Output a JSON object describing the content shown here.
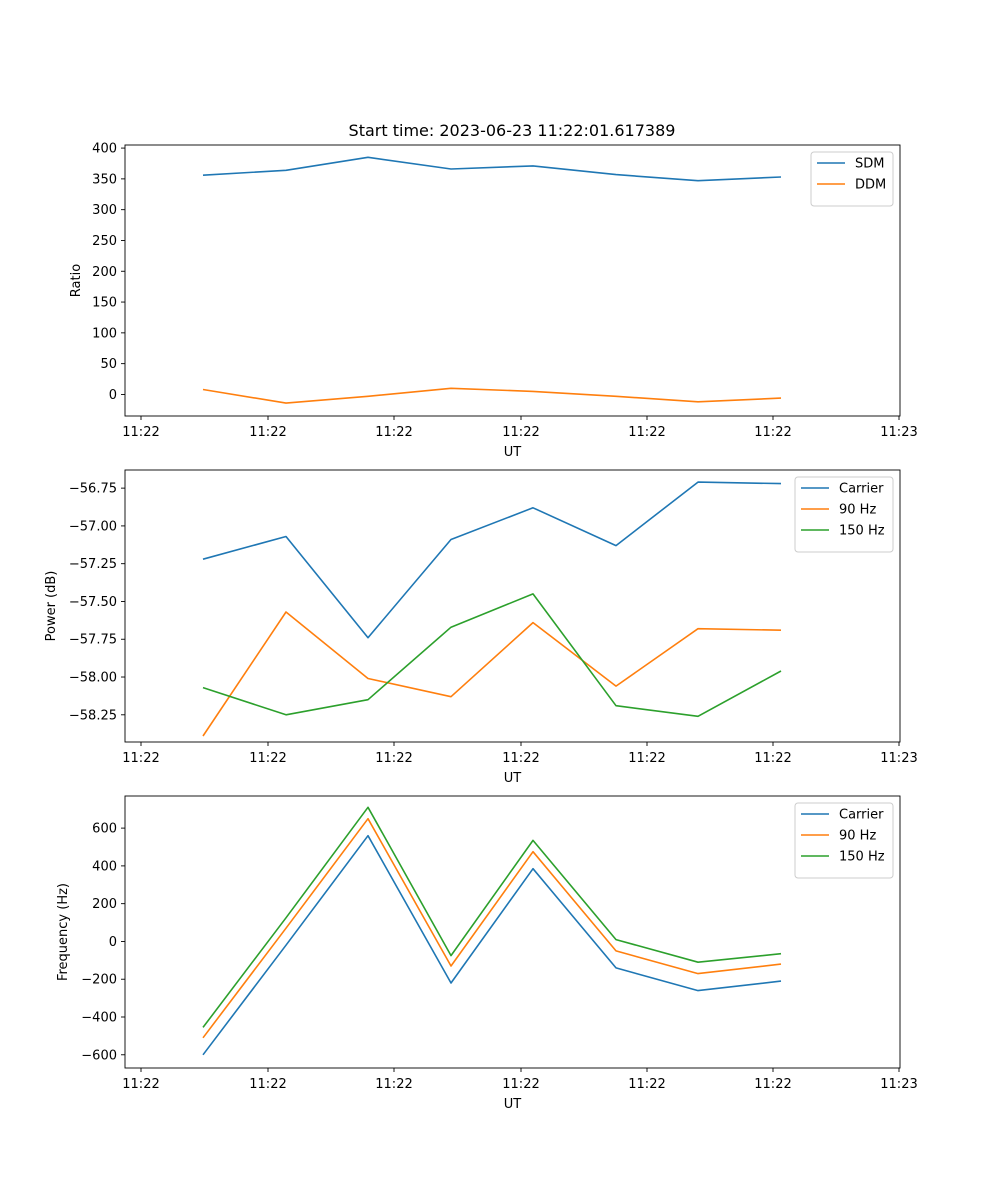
{
  "title": "Start time: 2023-06-23 11:22:01.617389",
  "colors": {
    "c0": "#1f77b4",
    "c1": "#ff7f0e",
    "c2": "#2ca02c"
  },
  "chart_data": [
    {
      "type": "line",
      "xlabel": "UT",
      "ylabel": "Ratio",
      "x_tick_labels": [
        "11:22",
        "11:22",
        "11:22",
        "11:22",
        "11:22",
        "11:22",
        "11:23"
      ],
      "y_ticks": [
        0,
        50,
        100,
        150,
        200,
        250,
        300,
        350,
        400
      ],
      "y_tick_labels": [
        "0",
        "50",
        "100",
        "150",
        "200",
        "250",
        "300",
        "350",
        "400"
      ],
      "ylim": [
        -35,
        405
      ],
      "legend_position": "upper right",
      "series": [
        {
          "name": "SDM",
          "values": [
            356,
            364,
            385,
            366,
            371,
            357,
            347,
            353
          ]
        },
        {
          "name": "DDM",
          "values": [
            8,
            -14,
            -3,
            10,
            5,
            -3,
            -12,
            -6
          ]
        }
      ]
    },
    {
      "type": "line",
      "xlabel": "UT",
      "ylabel": "Power (dB)",
      "x_tick_labels": [
        "11:22",
        "11:22",
        "11:22",
        "11:22",
        "11:22",
        "11:22",
        "11:23"
      ],
      "y_ticks": [
        -58.25,
        -58.0,
        -57.75,
        -57.5,
        -57.25,
        -57.0,
        -56.75
      ],
      "y_tick_labels": [
        "−58.25",
        "−58.00",
        "−57.75",
        "−57.50",
        "−57.25",
        "−57.00",
        "−56.75"
      ],
      "ylim": [
        -58.43,
        -56.63
      ],
      "legend_position": "upper right",
      "series": [
        {
          "name": "Carrier",
          "values": [
            -57.22,
            -57.07,
            -57.74,
            -57.09,
            -56.88,
            -57.13,
            -56.71,
            -56.72
          ]
        },
        {
          "name": "90 Hz",
          "values": [
            -58.39,
            -57.57,
            -58.01,
            -58.13,
            -57.64,
            -58.06,
            -57.68,
            -57.69
          ]
        },
        {
          "name": "150 Hz",
          "values": [
            -58.07,
            -58.25,
            -58.15,
            -57.67,
            -57.45,
            -58.19,
            -58.26,
            -57.96
          ]
        }
      ]
    },
    {
      "type": "line",
      "xlabel": "UT",
      "ylabel": "Frequency (Hz)",
      "x_tick_labels": [
        "11:22",
        "11:22",
        "11:22",
        "11:22",
        "11:22",
        "11:22",
        "11:23"
      ],
      "y_ticks": [
        -600,
        -400,
        -200,
        0,
        200,
        400,
        600
      ],
      "y_tick_labels": [
        "−600",
        "−400",
        "−200",
        "0",
        "200",
        "400",
        "600"
      ],
      "ylim": [
        -670,
        770
      ],
      "legend_position": "upper right",
      "series": [
        {
          "name": "Carrier",
          "values": [
            -600,
            -20,
            560,
            -220,
            385,
            -140,
            -260,
            -210
          ]
        },
        {
          "name": "90 Hz",
          "values": [
            -510,
            70,
            650,
            -130,
            475,
            -50,
            -170,
            -120
          ]
        },
        {
          "name": "150 Hz",
          "values": [
            -455,
            125,
            710,
            -75,
            535,
            10,
            -110,
            -65
          ]
        }
      ]
    }
  ]
}
